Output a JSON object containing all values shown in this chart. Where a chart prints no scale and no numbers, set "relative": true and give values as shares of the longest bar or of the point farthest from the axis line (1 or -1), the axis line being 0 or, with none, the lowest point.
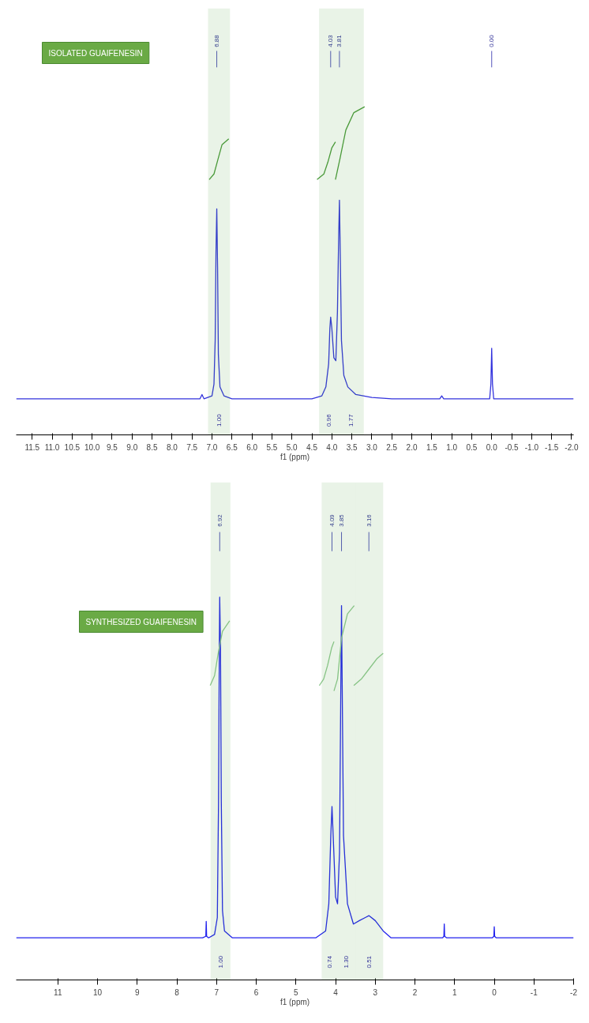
{
  "chart_data": [
    {
      "type": "line",
      "title": "ISOLATED GUAIFENESIN",
      "xlabel": "f1 (ppm)",
      "relative": true,
      "grid": false,
      "xlim": [
        11.9,
        -2.05
      ],
      "xticks": [
        11.5,
        {
          "value": 11,
          "label": "11.0"
        },
        10.5,
        {
          "value": 10,
          "label": "10.0"
        },
        9.5,
        {
          "value": 9,
          "label": "9.0"
        },
        8.5,
        {
          "value": 8,
          "label": "8.0"
        },
        7.5,
        {
          "value": 7,
          "label": "7.0"
        },
        6.5,
        {
          "value": 6,
          "label": "6.0"
        },
        5.5,
        {
          "value": 5,
          "label": "5.0"
        },
        4.5,
        {
          "value": 4,
          "label": "4.0"
        },
        3.5,
        {
          "value": 3,
          "label": "3.0"
        },
        2.5,
        {
          "value": 2,
          "label": "2.0"
        },
        1.5,
        {
          "value": 1,
          "label": "1.0"
        },
        0.5,
        {
          "value": 0,
          "label": "0.0"
        },
        -0.5,
        {
          "value": -1,
          "label": "-1.0"
        },
        -1.5,
        {
          "value": -2,
          "label": "-2.0"
        }
      ],
      "series": [
        {
          "color": "#3333dd",
          "x": [
            11.9,
            7.3,
            7.25,
            7.2,
            7.0,
            6.95,
            6.92,
            6.9,
            6.88,
            6.86,
            6.84,
            6.8,
            6.7,
            6.5,
            4.5,
            4.25,
            4.15,
            4.08,
            4.05,
            4.03,
            4.0,
            3.95,
            3.9,
            3.86,
            3.83,
            3.81,
            3.79,
            3.76,
            3.7,
            3.6,
            3.4,
            3.0,
            2.5,
            1.3,
            1.25,
            1.2,
            0.05,
            0.02,
            0.0,
            -0.02,
            -0.05,
            -2.05
          ],
          "values": [
            0.11,
            0.11,
            0.123,
            0.11,
            0.119,
            0.155,
            0.288,
            0.555,
            0.689,
            0.511,
            0.244,
            0.146,
            0.119,
            0.11,
            0.11,
            0.119,
            0.146,
            0.217,
            0.324,
            0.359,
            0.324,
            0.235,
            0.226,
            0.377,
            0.6,
            0.715,
            0.555,
            0.288,
            0.181,
            0.146,
            0.123,
            0.114,
            0.11,
            0.11,
            0.119,
            0.11,
            0.11,
            0.155,
            0.264,
            0.155,
            0.11,
            0.11
          ]
        },
        {
          "color": "#4a9a3a",
          "x": [
            7.07,
            6.95,
            6.85,
            6.75,
            6.58
          ],
          "values": [
            0.778,
            0.795,
            0.84,
            0.884,
            0.902
          ]
        },
        {
          "color": "#4a9a3a",
          "x": [
            4.37,
            4.2,
            4.1,
            4.0,
            3.91
          ],
          "values": [
            0.778,
            0.795,
            0.831,
            0.875,
            0.893
          ]
        },
        {
          "color": "#4a9a3a",
          "x": [
            3.91,
            3.8,
            3.65,
            3.45,
            3.18
          ],
          "values": [
            0.778,
            0.84,
            0.929,
            0.982,
            1.0
          ]
        }
      ],
      "annotations": [
        {
          "text": "6.88",
          "x": 6.88
        },
        {
          "text": "4.03",
          "x": 4.03
        },
        {
          "text": "3.81",
          "x": 3.81
        },
        {
          "text": "0.00",
          "x": 0.0
        }
      ],
      "bands": [
        {
          "axis": "x",
          "from": 7.1,
          "to": 6.55,
          "label": "1.00",
          "color": "#4a9a3a"
        },
        {
          "axis": "x",
          "from": 4.32,
          "to": 3.85,
          "label": "0.96",
          "color": "#4a9a3a"
        },
        {
          "axis": "x",
          "from": 3.85,
          "to": 3.2,
          "label": "1.77",
          "color": "#4a9a3a"
        }
      ]
    },
    {
      "type": "line",
      "title": "SYNTHESIZED GUAIFENESIN",
      "xlabel": "f1 (ppm)",
      "relative": true,
      "grid": false,
      "xlim": [
        12.05,
        -2.0
      ],
      "xticks": [
        11,
        10,
        9,
        8,
        7,
        6,
        5,
        4,
        3,
        2,
        1,
        0,
        -1,
        -2
      ],
      "series": [
        {
          "color": "#2222ee",
          "x": [
            12.05,
            7.35,
            7.27,
            7.26,
            7.25,
            7.2,
            7.05,
            6.98,
            6.95,
            6.93,
            6.92,
            6.9,
            6.88,
            6.85,
            6.8,
            6.6,
            4.5,
            4.25,
            4.17,
            4.12,
            4.09,
            4.06,
            4.0,
            3.95,
            3.9,
            3.87,
            3.85,
            3.83,
            3.8,
            3.7,
            3.55,
            3.4,
            3.25,
            3.16,
            3.0,
            2.8,
            2.6,
            1.3,
            1.27,
            1.26,
            1.25,
            1.2,
            0.05,
            0.01,
            0.0,
            -0.01,
            -0.05,
            -2.0
          ],
          "values": [
            0.11,
            0.11,
            0.114,
            0.153,
            0.114,
            0.11,
            0.119,
            0.163,
            0.466,
            0.867,
            1.0,
            0.867,
            0.466,
            0.181,
            0.128,
            0.11,
            0.11,
            0.128,
            0.199,
            0.377,
            0.453,
            0.377,
            0.217,
            0.199,
            0.333,
            0.733,
            0.978,
            0.733,
            0.377,
            0.199,
            0.146,
            0.155,
            0.163,
            0.168,
            0.155,
            0.128,
            0.11,
            0.11,
            0.114,
            0.146,
            0.114,
            0.11,
            0.11,
            0.114,
            0.139,
            0.114,
            0.11,
            0.11
          ]
        },
        {
          "color": "#8fc98f",
          "x": [
            7.16,
            7.05,
            6.95,
            6.85,
            6.67
          ],
          "values": [
            0.769,
            0.795,
            0.858,
            0.911,
            0.938
          ]
        },
        {
          "color": "#8fc98f",
          "x": [
            4.41,
            4.3,
            4.2,
            4.1,
            4.04
          ],
          "values": [
            0.769,
            0.786,
            0.822,
            0.867,
            0.884
          ]
        },
        {
          "color": "#8fc98f",
          "x": [
            4.04,
            3.95,
            3.85,
            3.7,
            3.53
          ],
          "values": [
            0.755,
            0.786,
            0.893,
            0.956,
            0.978
          ]
        },
        {
          "color": "#8fc98f",
          "x": [
            3.54,
            3.35,
            3.15,
            2.95,
            2.8
          ],
          "values": [
            0.769,
            0.786,
            0.813,
            0.84,
            0.853
          ]
        }
      ],
      "annotations": [
        {
          "text": "6.92",
          "x": 6.92
        },
        {
          "text": "4.09",
          "x": 4.09
        },
        {
          "text": "3.85",
          "x": 3.85
        },
        {
          "text": "3.16",
          "x": 3.16
        }
      ],
      "bands": [
        {
          "axis": "x",
          "from": 7.15,
          "to": 6.65,
          "label": "1.00",
          "color": "#4a9a3a"
        },
        {
          "axis": "x",
          "from": 4.35,
          "to": 3.95,
          "label": "0.74",
          "color": "#4a9a3a"
        },
        {
          "axis": "x",
          "from": 3.95,
          "to": 3.5,
          "label": "1.30",
          "color": "#4a9a3a"
        },
        {
          "axis": "x",
          "from": 3.5,
          "to": 2.8,
          "label": "0.51",
          "color": "#4a9a3a"
        }
      ]
    }
  ]
}
